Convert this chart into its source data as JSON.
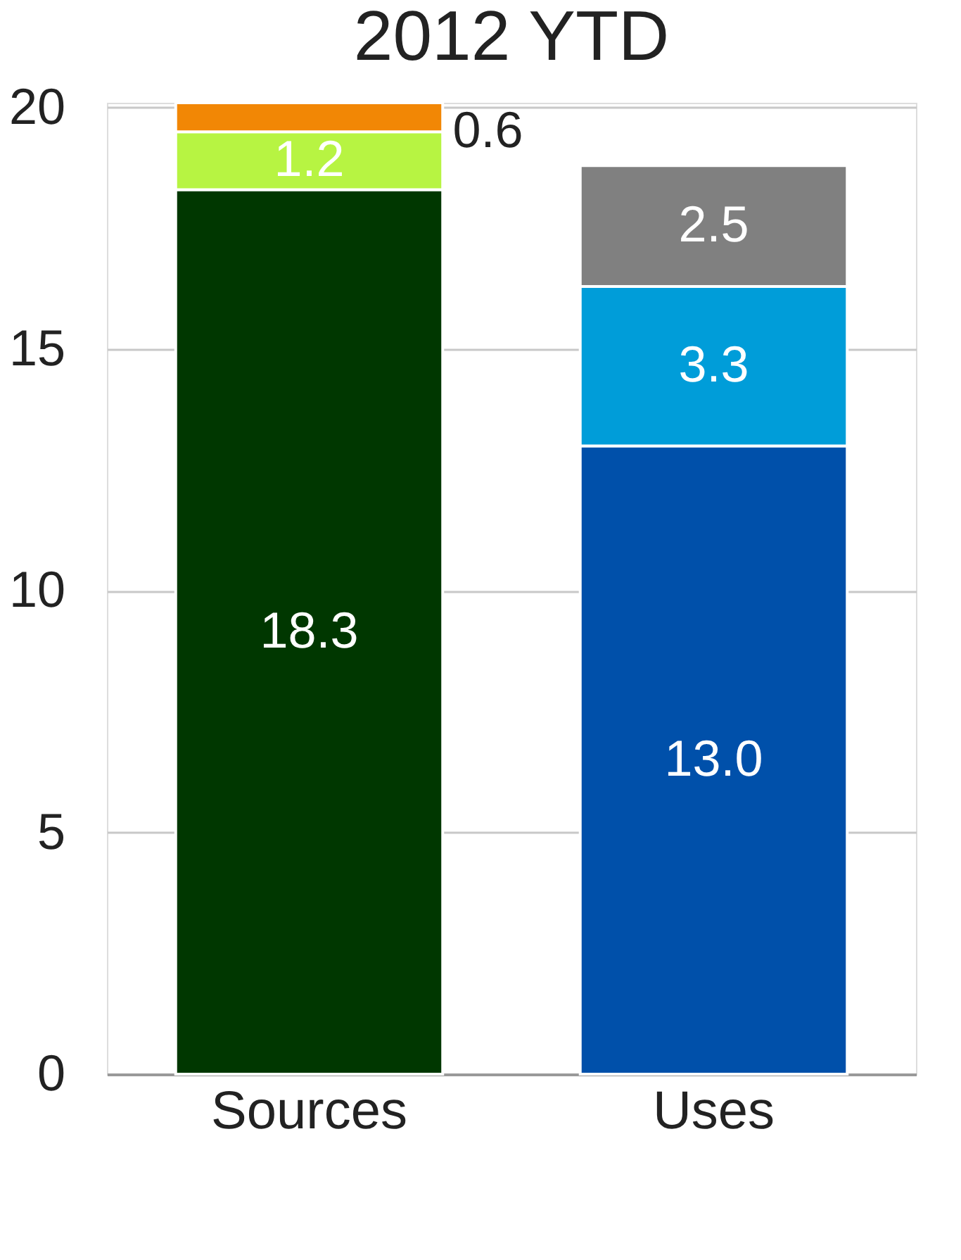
{
  "chart_data": {
    "type": "bar",
    "title": "2012 YTD",
    "categories": [
      "Sources",
      "Uses"
    ],
    "stacked": true,
    "series": [
      {
        "colors": [
          "#003700",
          "#0050aa"
        ],
        "values": [
          18.3,
          13.0
        ],
        "value_labels": [
          "18.3",
          "13.0"
        ]
      },
      {
        "colors": [
          "#b7f442",
          "#009dd9"
        ],
        "values": [
          1.2,
          3.3
        ],
        "value_labels": [
          "1.2",
          "3.3"
        ]
      },
      {
        "colors": [
          "#f28705",
          "#808080"
        ],
        "values": [
          0.6,
          2.5
        ],
        "value_labels": [
          "0.6",
          "2.5"
        ]
      }
    ],
    "ylim": [
      0,
      20.1
    ],
    "yticks": [
      0,
      5,
      10,
      15,
      20
    ],
    "grid": "y"
  }
}
